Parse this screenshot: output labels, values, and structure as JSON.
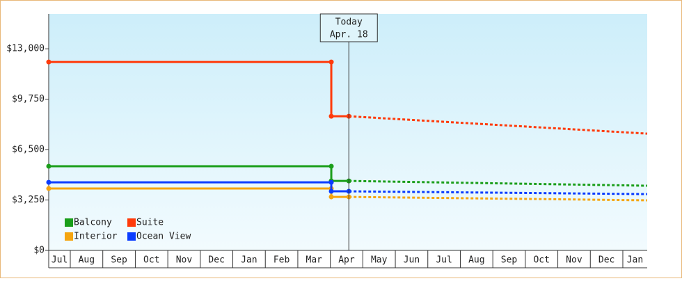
{
  "chart_data": {
    "type": "line",
    "xlim": [
      0.336,
      18.75
    ],
    "xticks": [
      {
        "value": 0,
        "label": "Jul"
      },
      {
        "value": 1,
        "label": "Aug"
      },
      {
        "value": 2,
        "label": "Sep"
      },
      {
        "value": 3,
        "label": "Oct"
      },
      {
        "value": 4,
        "label": "Nov"
      },
      {
        "value": 5,
        "label": "Dec"
      },
      {
        "value": 6,
        "label": "Jan"
      },
      {
        "value": 7,
        "label": "Feb"
      },
      {
        "value": 8,
        "label": "Mar"
      },
      {
        "value": 9,
        "label": "Apr"
      },
      {
        "value": 10,
        "label": "May"
      },
      {
        "value": 11,
        "label": "Jun"
      },
      {
        "value": 12,
        "label": "Jul"
      },
      {
        "value": 13,
        "label": "Aug"
      },
      {
        "value": 14,
        "label": "Sep"
      },
      {
        "value": 15,
        "label": "Oct"
      },
      {
        "value": 16,
        "label": "Nov"
      },
      {
        "value": 17,
        "label": "Dec"
      },
      {
        "value": 18,
        "label": "Jan"
      }
    ],
    "ylim": [
      0,
      15250
    ],
    "yticks": [
      {
        "value": 0,
        "label": "$0"
      },
      {
        "value": 3250,
        "label": "$3,250"
      },
      {
        "value": 6500,
        "label": "$6,500"
      },
      {
        "value": 9750,
        "label": "$9,750"
      },
      {
        "value": 13000,
        "label": "$13,000"
      }
    ],
    "annotation": {
      "x": 9.57,
      "lines": [
        "Today",
        "Apr. 18"
      ]
    },
    "legend": "lower left",
    "series": [
      {
        "name": "Balcony",
        "color": "#1a9e1a",
        "x": [
          0.336,
          9.03,
          9.03,
          9.57
        ],
        "values": [
          5425,
          5425,
          4480,
          4480
        ],
        "forecast_x": [
          9.57,
          18.75
        ],
        "forecast_values": [
          4480,
          4170
        ]
      },
      {
        "name": "Suite",
        "color": "#ff3a0a",
        "x": [
          0.336,
          9.03,
          9.03,
          9.57
        ],
        "values": [
          12150,
          12150,
          8650,
          8650
        ],
        "forecast_x": [
          9.57,
          18.75
        ],
        "forecast_values": [
          8650,
          7530
        ]
      },
      {
        "name": "Interior",
        "color": "#f5a510",
        "x": [
          0.336,
          9.03,
          9.03,
          9.57
        ],
        "values": [
          3990,
          3990,
          3450,
          3450
        ],
        "forecast_x": [
          9.57,
          18.75
        ],
        "forecast_values": [
          3450,
          3230
        ]
      },
      {
        "name": "Ocean View",
        "color": "#0a3cff",
        "x": [
          0.336,
          9.03,
          9.03,
          9.57
        ],
        "values": [
          4390,
          4390,
          3810,
          3810
        ],
        "forecast_x": [
          9.57,
          18.75
        ],
        "forecast_values": [
          3810,
          3630
        ]
      }
    ]
  }
}
